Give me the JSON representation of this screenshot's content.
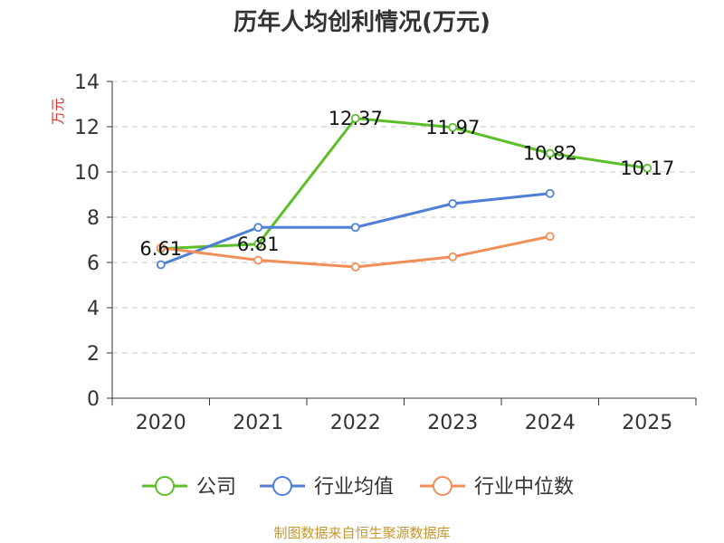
{
  "chart_data": {
    "type": "line",
    "title": "历年人均创利情况(万元)",
    "ylabel": "万元",
    "xlabel": "",
    "categories": [
      "2020",
      "2021",
      "2022",
      "2023",
      "2024",
      "2025"
    ],
    "ylim": [
      0,
      14
    ],
    "yticks": [
      "0",
      "2",
      "4",
      "6",
      "8",
      "10",
      "12",
      "14"
    ],
    "grid": true,
    "legend_position": "bottom",
    "series": [
      {
        "name": "公司",
        "color": "#5cbf2a",
        "values": [
          6.61,
          6.81,
          12.37,
          11.97,
          10.82,
          10.17
        ],
        "labels": [
          "6.61",
          "6.81",
          "12.37",
          "11.97",
          "10.82",
          "10.17"
        ]
      },
      {
        "name": "行业均值",
        "color": "#4f7fd6",
        "values": [
          5.9,
          7.55,
          7.55,
          8.6,
          9.05,
          null
        ]
      },
      {
        "name": "行业中位数",
        "color": "#f28e58",
        "values": [
          6.65,
          6.1,
          5.8,
          6.25,
          7.15,
          null
        ]
      }
    ],
    "source": "制图数据来自恒生聚源数据库"
  }
}
